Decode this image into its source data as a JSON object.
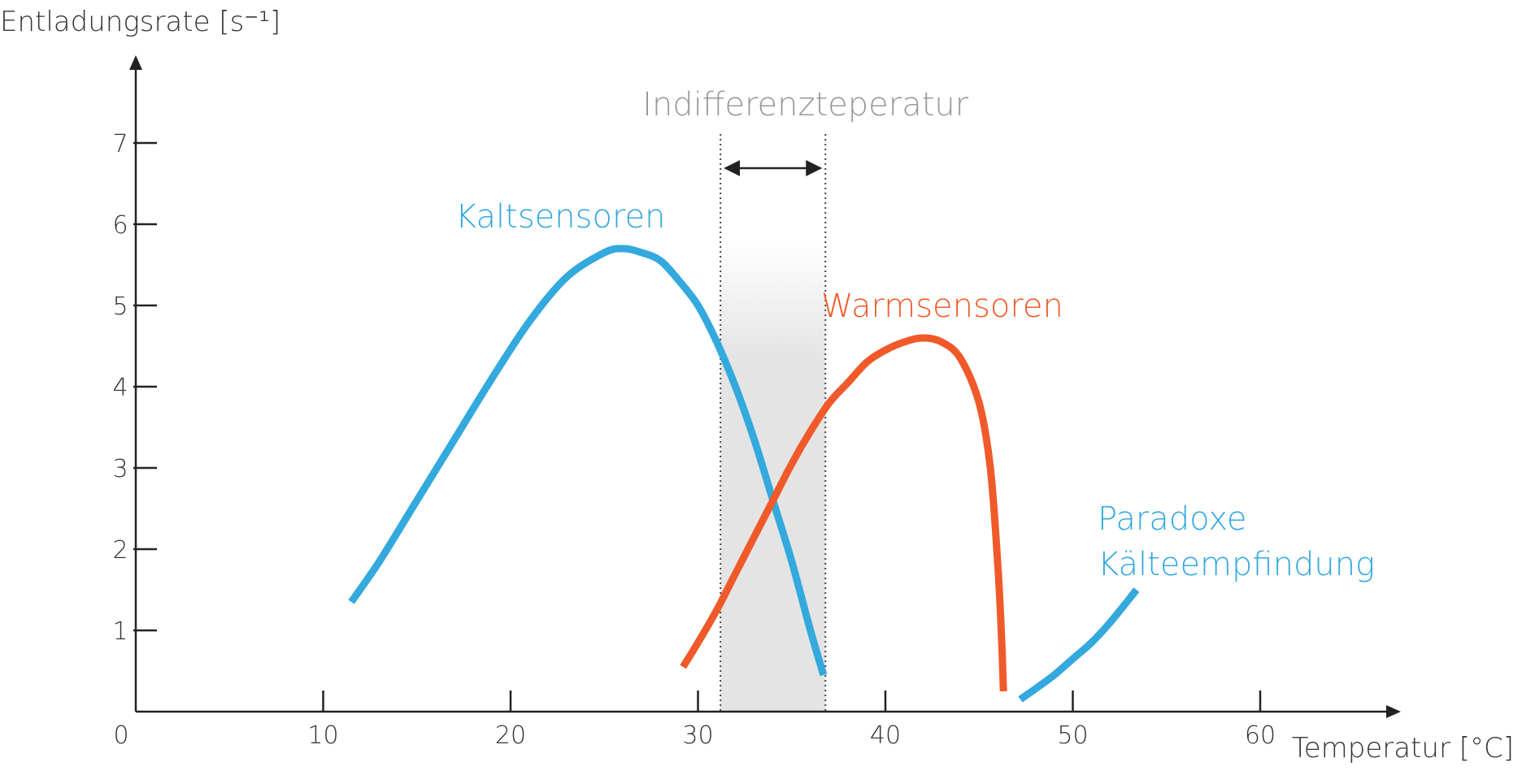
{
  "chart_data": {
    "type": "line",
    "xlabel": "Temperatur [°C]",
    "ylabel": "Entladungsrate [s⁻¹]",
    "xlim": [
      0,
      68
    ],
    "ylim": [
      0,
      7.8
    ],
    "x_ticks": [
      0,
      10,
      20,
      30,
      40,
      50,
      60
    ],
    "y_ticks": [
      1,
      2,
      3,
      4,
      5,
      6,
      7
    ],
    "grid": false,
    "series": [
      {
        "name": "Kaltsensoren",
        "color": "#33a9dd",
        "x": [
          11.5,
          13,
          15,
          17,
          19,
          21,
          23,
          25,
          26,
          27,
          28,
          29,
          30,
          31,
          32,
          33,
          34,
          35,
          36,
          36.7
        ],
        "y": [
          1.35,
          1.85,
          2.6,
          3.35,
          4.1,
          4.8,
          5.35,
          5.65,
          5.7,
          5.65,
          5.55,
          5.3,
          5.0,
          4.55,
          4.0,
          3.35,
          2.6,
          1.85,
          1.0,
          0.45
        ]
      },
      {
        "name": "Warmsensoren",
        "color": "#f05a2b",
        "x": [
          29.2,
          30,
          31,
          32,
          33,
          34,
          35,
          36,
          37,
          38,
          39,
          40,
          41,
          42,
          43,
          44,
          45,
          45.6,
          46,
          46.2,
          46.3
        ],
        "y": [
          0.55,
          0.85,
          1.25,
          1.7,
          2.15,
          2.6,
          3.05,
          3.45,
          3.8,
          4.05,
          4.3,
          4.45,
          4.55,
          4.6,
          4.55,
          4.35,
          3.8,
          3.0,
          1.8,
          0.9,
          0.25
        ]
      },
      {
        "name": "Paradoxe Kälteempfindung",
        "color": "#33a9dd",
        "x": [
          47.2,
          48,
          49,
          50,
          51,
          52,
          53.4
        ],
        "y": [
          0.15,
          0.28,
          0.45,
          0.65,
          0.85,
          1.1,
          1.5
        ]
      }
    ],
    "annotations": {
      "indifference_zone": {
        "label": "Indifferenzteperatur",
        "x_range": [
          31.2,
          36.8
        ]
      },
      "labels": [
        {
          "text": "Kaltsensoren",
          "color": "#33a9dd"
        },
        {
          "text": "Warmsensoren",
          "color": "#f05a2b"
        },
        {
          "line1": "Paradoxe",
          "line2": "Kälteempfindung",
          "color": "#33a9dd"
        }
      ]
    }
  }
}
